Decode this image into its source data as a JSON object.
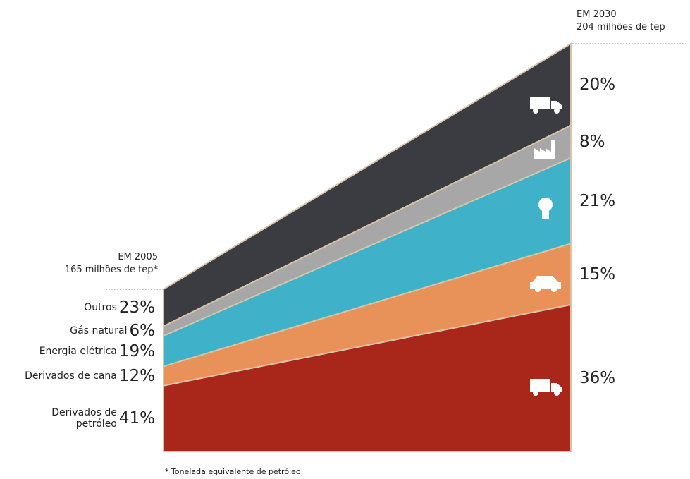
{
  "chart_data": {
    "type": "stacked-slope",
    "categories": [
      "EM 2005",
      "EM 2030"
    ],
    "subtitles": [
      "165 milhões de tep*",
      "204 milhões de tep"
    ],
    "series": [
      {
        "name": "Outros",
        "color": "#3b3c42",
        "values": [
          23,
          20
        ],
        "value_labels": [
          "23%",
          "20%"
        ]
      },
      {
        "name": "Gás natural",
        "color": "#a7a7a7",
        "values": [
          6,
          8
        ],
        "value_labels": [
          "6%",
          "8%"
        ]
      },
      {
        "name": "Energia elétrica",
        "color": "#3fb2c9",
        "values": [
          19,
          21
        ],
        "value_labels": [
          "19%",
          "21%"
        ]
      },
      {
        "name": "Derivados de cana",
        "color": "#e8925a",
        "values": [
          12,
          15
        ],
        "value_labels": [
          "12%",
          "15%"
        ]
      },
      {
        "name": "Derivados de petróleo",
        "color": "#a8271a",
        "values": [
          41,
          36
        ],
        "value_labels": [
          "41%",
          "36%"
        ]
      }
    ],
    "footnote": "* Tonelada equivalente de petróleo"
  }
}
